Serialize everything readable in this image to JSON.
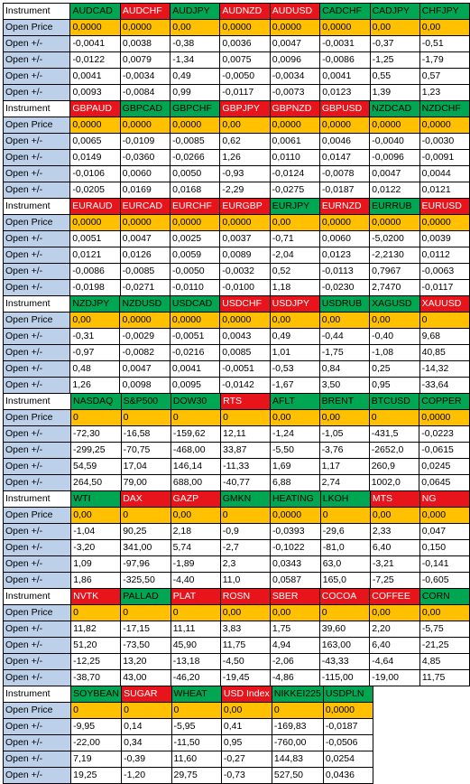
{
  "row_labels": {
    "instrument": "Instrument",
    "open_price": "Open Price",
    "open_change": "Open +/-"
  },
  "colors": {
    "header_green": "#00a652",
    "header_red": "#e8141b",
    "open_price_fill": "#ffc000",
    "label_fill": "#bcd0ea"
  },
  "blocks": [
    {
      "headers": [
        {
          "name": "AUDCAD",
          "color": "green"
        },
        {
          "name": "AUDCHF",
          "color": "red"
        },
        {
          "name": "AUDJPY",
          "color": "green"
        },
        {
          "name": "AUDNZD",
          "color": "red"
        },
        {
          "name": "AUDUSD",
          "color": "red"
        },
        {
          "name": "CADCHF",
          "color": "green"
        },
        {
          "name": "CADJPY",
          "color": "green"
        },
        {
          "name": "CHFJPY",
          "color": "green"
        }
      ],
      "open_price": [
        "0,0000",
        "0,0000",
        "0,00",
        "0,0000",
        "0,0000",
        "0,0000",
        "0,00",
        "0,00"
      ],
      "rows": [
        [
          "-0,0041",
          "0,0038",
          "-0,38",
          "0,0036",
          "0,0047",
          "-0,0031",
          "-0,37",
          "-0,51"
        ],
        [
          "-0,0122",
          "0,0079",
          "-1,34",
          "0,0075",
          "0,0096",
          "-0,0086",
          "-1,25",
          "-1,79"
        ],
        [
          "0,0041",
          "-0,0034",
          "0,49",
          "-0,0050",
          "-0,0034",
          "0,0041",
          "0,55",
          "0,57"
        ],
        [
          "0,0093",
          "-0,0084",
          "0,99",
          "-0,0117",
          "-0,0073",
          "0,0123",
          "1,39",
          "1,23"
        ]
      ]
    },
    {
      "headers": [
        {
          "name": "GBPAUD",
          "color": "red"
        },
        {
          "name": "GBPCAD",
          "color": "green"
        },
        {
          "name": "GBPCHF",
          "color": "green"
        },
        {
          "name": "GBPJPY",
          "color": "red"
        },
        {
          "name": "GBPNZD",
          "color": "red"
        },
        {
          "name": "GBPUSD",
          "color": "red"
        },
        {
          "name": "NZDCAD",
          "color": "green"
        },
        {
          "name": "NZDCHF",
          "color": "green"
        }
      ],
      "open_price": [
        "0,0000",
        "0,0000",
        "0,0000",
        "0,00",
        "0,0000",
        "0,0000",
        "0,0000",
        "0,0000"
      ],
      "rows": [
        [
          "0,0065",
          "-0,0109",
          "-0,0085",
          "0,62",
          "0,0061",
          "0,0046",
          "-0,0040",
          "-0,0030"
        ],
        [
          "0,0149",
          "-0,0360",
          "-0,0266",
          "1,26",
          "0,0110",
          "0,0147",
          "-0,0096",
          "-0,0091"
        ],
        [
          "-0,0106",
          "0,0060",
          "0,0050",
          "-0,93",
          "-0,0124",
          "-0,0078",
          "0,0047",
          "0,0044"
        ],
        [
          "-0,0205",
          "0,0169",
          "0,0168",
          "-2,29",
          "-0,0275",
          "-0,0187",
          "0,0122",
          "0,0121"
        ]
      ]
    },
    {
      "headers": [
        {
          "name": "EURAUD",
          "color": "red"
        },
        {
          "name": "EURCAD",
          "color": "red"
        },
        {
          "name": "EURCHF",
          "color": "red"
        },
        {
          "name": "EURGBP",
          "color": "red"
        },
        {
          "name": "EURJPY",
          "color": "green"
        },
        {
          "name": "EURNZD",
          "color": "red"
        },
        {
          "name": "EURRUB",
          "color": "green"
        },
        {
          "name": "EURUSD",
          "color": "red"
        }
      ],
      "open_price": [
        "0,0000",
        "0,0000",
        "0,0000",
        "0,0000",
        "0,00",
        "0,0000",
        "0,0000",
        "0,0000"
      ],
      "rows": [
        [
          "0,0051",
          "0,0047",
          "0,0025",
          "0,0037",
          "-0,71",
          "0,0060",
          "-5,0200",
          "0,0039"
        ],
        [
          "0,0121",
          "0,0126",
          "0,0059",
          "0,0089",
          "-2,04",
          "0,0123",
          "-2,2130",
          "0,0112"
        ],
        [
          "-0,0086",
          "-0,0085",
          "-0,0050",
          "-0,0032",
          "0,52",
          "-0,0113",
          "0,7967",
          "-0,0063"
        ],
        [
          "-0,0198",
          "-0,0271",
          "-0,0110",
          "-0,0100",
          "1,18",
          "-0,0230",
          "2,7470",
          "-0,0117"
        ]
      ]
    },
    {
      "headers": [
        {
          "name": "NZDJPY",
          "color": "green"
        },
        {
          "name": "NZDUSD",
          "color": "green"
        },
        {
          "name": "USDCAD",
          "color": "green"
        },
        {
          "name": "USDCHF",
          "color": "red"
        },
        {
          "name": "USDJPY",
          "color": "red"
        },
        {
          "name": "USDRUB",
          "color": "green"
        },
        {
          "name": "XAGUSD",
          "color": "green"
        },
        {
          "name": "XAUUSD",
          "color": "red"
        }
      ],
      "open_price": [
        "0,00",
        "0,0000",
        "0,0000",
        "0,0000",
        "0,00",
        "0,00",
        "0,00",
        "0"
      ],
      "rows": [
        [
          "-0,31",
          "-0,0029",
          "-0,0051",
          "0,0043",
          "0,49",
          "-0,44",
          "-0,40",
          "9,68"
        ],
        [
          "-0,97",
          "-0,0082",
          "-0,0216",
          "0,0085",
          "1,01",
          "-1,75",
          "-1,08",
          "40,85"
        ],
        [
          "0,48",
          "0,0047",
          "0,0041",
          "-0,0051",
          "-0,53",
          "0,84",
          "0,25",
          "-14,32"
        ],
        [
          "1,26",
          "0,0098",
          "0,0095",
          "-0,0142",
          "-1,67",
          "3,50",
          "0,95",
          "-33,64"
        ]
      ]
    },
    {
      "headers": [
        {
          "name": "NASDAQ",
          "color": "green"
        },
        {
          "name": "S&P500",
          "color": "green"
        },
        {
          "name": "DOW30",
          "color": "green"
        },
        {
          "name": "RTS",
          "color": "red"
        },
        {
          "name": "AFLT",
          "color": "green"
        },
        {
          "name": "BRENT",
          "color": "green"
        },
        {
          "name": "BTCUSD",
          "color": "green"
        },
        {
          "name": "COPPER",
          "color": "green"
        }
      ],
      "open_price": [
        "0",
        "0",
        "0",
        "0",
        "0,00",
        "0,00",
        "0",
        "0,0000"
      ],
      "rows": [
        [
          "-72,30",
          "-16,58",
          "-159,62",
          "12,11",
          "-1,24",
          "-1,05",
          "-431,5",
          "-0,0223"
        ],
        [
          "-299,25",
          "-70,75",
          "-468,00",
          "33,87",
          "-5,50",
          "-3,76",
          "-2652,0",
          "-0,0615"
        ],
        [
          "54,59",
          "17,04",
          "146,14",
          "-11,33",
          "1,69",
          "1,17",
          "260,9",
          "0,0245"
        ],
        [
          "264,50",
          "79,00",
          "688,00",
          "-40,77",
          "6,88",
          "2,74",
          "1002,0",
          "0,0645"
        ]
      ]
    },
    {
      "headers": [
        {
          "name": "WTI",
          "color": "green"
        },
        {
          "name": "DAX",
          "color": "red"
        },
        {
          "name": "GAZP",
          "color": "red"
        },
        {
          "name": "GMKN",
          "color": "green"
        },
        {
          "name": "HEATING",
          "color": "green"
        },
        {
          "name": "LKOH",
          "color": "green"
        },
        {
          "name": "MTS",
          "color": "red"
        },
        {
          "name": "NG",
          "color": "red"
        }
      ],
      "open_price": [
        "0,00",
        "0",
        "0,00",
        "0",
        "0,0000",
        "0",
        "0,00",
        "0,000"
      ],
      "rows": [
        [
          "-1,04",
          "90,25",
          "2,18",
          "-0,9",
          "-0,0393",
          "-29,6",
          "2,33",
          "0,047"
        ],
        [
          "-3,20",
          "341,00",
          "5,74",
          "-2,7",
          "-0,1022",
          "-81,0",
          "6,40",
          "0,150"
        ],
        [
          "1,09",
          "-97,96",
          "-1,89",
          "2,3",
          "0,0343",
          "63,0",
          "-3,21",
          "-0,141"
        ],
        [
          "1,86",
          "-325,50",
          "-4,40",
          "11,0",
          "0,0587",
          "165,0",
          "-7,25",
          "-0,605"
        ]
      ]
    },
    {
      "headers": [
        {
          "name": "NVTK",
          "color": "red"
        },
        {
          "name": "PALLAD",
          "color": "green"
        },
        {
          "name": "PLAT",
          "color": "red"
        },
        {
          "name": "ROSN",
          "color": "red"
        },
        {
          "name": "SBER",
          "color": "red"
        },
        {
          "name": "COCOA",
          "color": "red"
        },
        {
          "name": "COFFEE",
          "color": "red"
        },
        {
          "name": "CORN",
          "color": "green"
        }
      ],
      "open_price": [
        "0",
        "0",
        "0",
        "0,00",
        "0,00",
        "0",
        "0,00",
        "0,00"
      ],
      "rows": [
        [
          "11,82",
          "-17,15",
          "11,11",
          "3,83",
          "1,75",
          "39,60",
          "2,20",
          "-5,75"
        ],
        [
          "51,20",
          "-73,50",
          "45,90",
          "11,75",
          "4,94",
          "163,00",
          "6,40",
          "-21,25"
        ],
        [
          "-12,25",
          "13,20",
          "-13,18",
          "-4,50",
          "-2,06",
          "-43,33",
          "-4,64",
          "4,85"
        ],
        [
          "-38,70",
          "43,00",
          "-46,20",
          "-19,45",
          "-4,86",
          "-115,00",
          "-19,00",
          "11,75"
        ]
      ]
    },
    {
      "headers": [
        {
          "name": "SOYBEAN",
          "color": "green"
        },
        {
          "name": "SUGAR",
          "color": "red"
        },
        {
          "name": "WHEAT",
          "color": "green"
        },
        {
          "name": "USD Index",
          "color": "red"
        },
        {
          "name": "NIKKEI225",
          "color": "green"
        },
        {
          "name": "USDPLN",
          "color": "green"
        }
      ],
      "open_price": [
        "0",
        "0",
        "0",
        "0,00",
        "0",
        "0,0000"
      ],
      "rows": [
        [
          "-9,95",
          "0,14",
          "-5,95",
          "0,41",
          "-169,83",
          "-0,0187"
        ],
        [
          "-22,00",
          "0,34",
          "-11,50",
          "0,95",
          "-760,00",
          "-0,0506"
        ],
        [
          "7,19",
          "-0,39",
          "11,60",
          "-0,27",
          "144,83",
          "0,0254"
        ],
        [
          "19,25",
          "-1,20",
          "29,75",
          "-0,73",
          "527,50",
          "0,0436"
        ]
      ]
    }
  ]
}
